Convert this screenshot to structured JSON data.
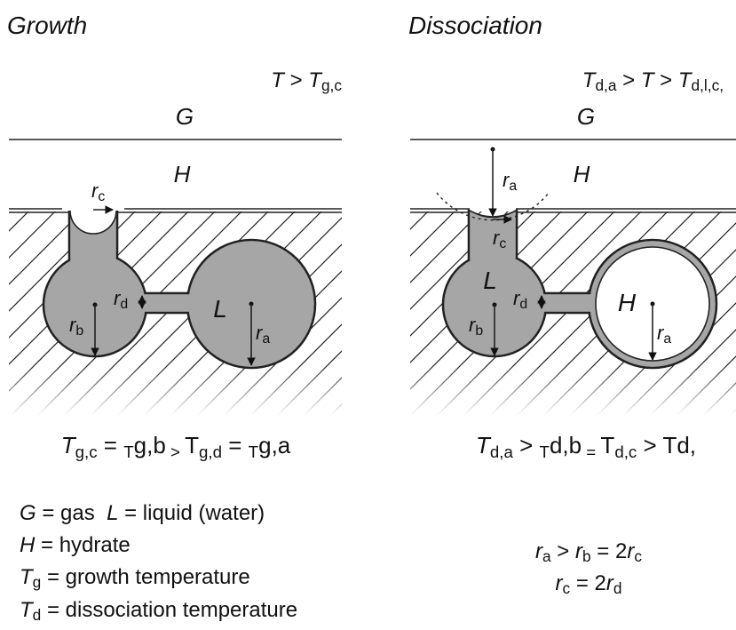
{
  "growth": {
    "title": "Growth",
    "condition": [
      "T",
      " > ",
      "T",
      "g,c"
    ],
    "gas": "G",
    "hydrate": "H",
    "liquid": "L",
    "rc": [
      "r",
      "c"
    ],
    "rd": [
      "r",
      "d"
    ],
    "rb": [
      "r",
      "b"
    ],
    "ra": [
      "r",
      "a"
    ],
    "relation": [
      "T",
      "g,c",
      " = ",
      "T",
      "g,b",
      " > ",
      "T",
      "g,d",
      " = ",
      "T",
      "g,a"
    ]
  },
  "dissociation": {
    "title": "Dissociation",
    "condition": [
      "T",
      "d,a",
      " > ",
      "T",
      " > ",
      "T",
      "d,l,c,"
    ],
    "gas": "G",
    "hydrate": "H",
    "liquid": "L",
    "ra_top": [
      "r",
      "a"
    ],
    "rc": [
      "r",
      "c"
    ],
    "rd": [
      "r",
      "d"
    ],
    "rb": [
      "r",
      "b"
    ],
    "pore_hydrate": "H",
    "ra": [
      "r",
      "a"
    ],
    "relation": [
      "T",
      "d,a",
      " > ",
      "T",
      "d,b",
      " = ",
      "T",
      "d,c",
      " > ",
      "T",
      "d,"
    ]
  },
  "legend": {
    "gas_liquid": [
      "G",
      " = gas  ",
      "L",
      " = liquid (water)"
    ],
    "hydrate": [
      "H",
      " = hydrate"
    ],
    "tg": [
      "T",
      "g",
      " = growth temperature"
    ],
    "td": [
      "T",
      "d",
      " = dissociation temperature"
    ]
  },
  "radii": {
    "line1": [
      "r",
      "a",
      " > ",
      "r",
      "b",
      " = 2",
      "r",
      "c"
    ],
    "line2": [
      "r",
      "c",
      " = 2",
      "r",
      "d"
    ]
  }
}
